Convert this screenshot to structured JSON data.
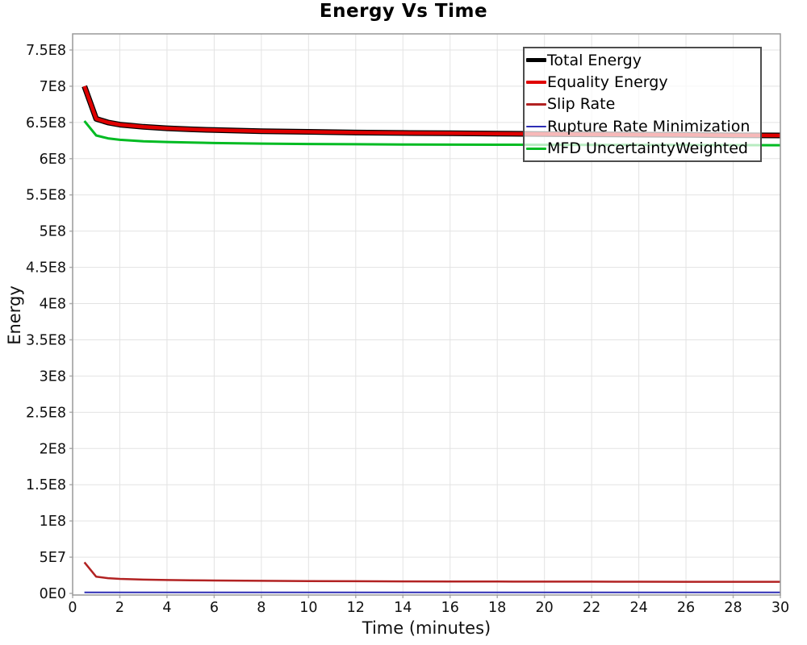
{
  "chart_data": {
    "type": "line",
    "title": "Energy Vs Time",
    "xlabel": "Time (minutes)",
    "ylabel": "Energy",
    "xlim": [
      0,
      30
    ],
    "ylim": [
      0,
      775000000
    ],
    "grid": true,
    "legend_position": "top-right",
    "background_color": "#ffffff",
    "grid_color": "#e3e3e3",
    "plot_border_color": "#999999",
    "tick_color": "#b0b0b0",
    "x_ticks": [
      0,
      2,
      4,
      6,
      8,
      10,
      12,
      14,
      16,
      18,
      20,
      22,
      24,
      26,
      28,
      30
    ],
    "y_ticks": [
      {
        "value": 0,
        "label": "0E0"
      },
      {
        "value": 50000000.0,
        "label": "5E7"
      },
      {
        "value": 100000000.0,
        "label": "1E8"
      },
      {
        "value": 150000000.0,
        "label": "1.5E8"
      },
      {
        "value": 200000000.0,
        "label": "2E8"
      },
      {
        "value": 250000000.0,
        "label": "2.5E8"
      },
      {
        "value": 300000000.0,
        "label": "3E8"
      },
      {
        "value": 350000000.0,
        "label": "3.5E8"
      },
      {
        "value": 400000000.0,
        "label": "4E8"
      },
      {
        "value": 450000000.0,
        "label": "4.5E8"
      },
      {
        "value": 500000000.0,
        "label": "5E8"
      },
      {
        "value": 550000000.0,
        "label": "5.5E8"
      },
      {
        "value": 600000000.0,
        "label": "6E8"
      },
      {
        "value": 650000000.0,
        "label": "6.5E8"
      },
      {
        "value": 700000000.0,
        "label": "7E8"
      },
      {
        "value": 750000000.0,
        "label": "7.5E8"
      }
    ],
    "x": [
      0.5,
      1,
      1.5,
      2,
      3,
      4,
      5,
      6,
      8,
      10,
      12,
      14,
      16,
      18,
      20,
      22,
      24,
      26,
      28,
      30
    ],
    "series": [
      {
        "name": "Total Energy",
        "color": "#000000",
        "line_width": 7,
        "swatch_height": 5,
        "y": [
          700000000.0,
          655000000.0,
          650000000.0,
          647000000.0,
          644000000.0,
          642000000.0,
          640500000.0,
          639500000.0,
          638000000.0,
          637000000.0,
          636000000.0,
          635500000.0,
          635000000.0,
          634500000.0,
          634000000.0,
          633600000.0,
          633200000.0,
          632800000.0,
          632400000.0,
          632000000.0
        ]
      },
      {
        "name": "Equality Energy",
        "color": "#e00000",
        "line_width": 4.5,
        "swatch_height": 4,
        "y": [
          700000000.0,
          655000000.0,
          650000000.0,
          647000000.0,
          644000000.0,
          642000000.0,
          640500000.0,
          639500000.0,
          638000000.0,
          637000000.0,
          636000000.0,
          635500000.0,
          635000000.0,
          634500000.0,
          634000000.0,
          633600000.0,
          633200000.0,
          632800000.0,
          632400000.0,
          632000000.0
        ]
      },
      {
        "name": "Slip Rate",
        "color": "#b22222",
        "line_width": 2.5,
        "swatch_height": 2.5,
        "y": [
          43000000.0,
          23000000.0,
          21000000.0,
          20000000.0,
          19000000.0,
          18500000.0,
          18000000.0,
          17800000.0,
          17400000.0,
          17000000.0,
          16800000.0,
          16600000.0,
          16500000.0,
          16400000.0,
          16300000.0,
          16200000.0,
          16100000.0,
          16000000.0,
          16000000.0,
          16000000.0
        ]
      },
      {
        "name": "Rupture Rate Minimization",
        "color": "#2d2db4",
        "line_width": 2,
        "swatch_height": 2,
        "y": [
          1500000.0,
          1500000.0,
          1500000.0,
          1500000.0,
          1500000.0,
          1500000.0,
          1500000.0,
          1500000.0,
          1500000.0,
          1500000.0,
          1500000.0,
          1500000.0,
          1500000.0,
          1500000.0,
          1500000.0,
          1500000.0,
          1500000.0,
          1500000.0,
          1500000.0,
          1500000.0
        ]
      },
      {
        "name": "MFD UncertaintyWeighted",
        "color": "#00bb22",
        "line_width": 3,
        "swatch_height": 3,
        "y": [
          652000000.0,
          632000000.0,
          628000000.0,
          626000000.0,
          624000000.0,
          623000000.0,
          622200000.0,
          621600000.0,
          620800000.0,
          620300000.0,
          619900000.0,
          619600000.0,
          619400000.0,
          619200000.0,
          619100000.0,
          619000000.0,
          618900000.0,
          618800000.0,
          618700000.0,
          618600000.0
        ]
      }
    ]
  }
}
